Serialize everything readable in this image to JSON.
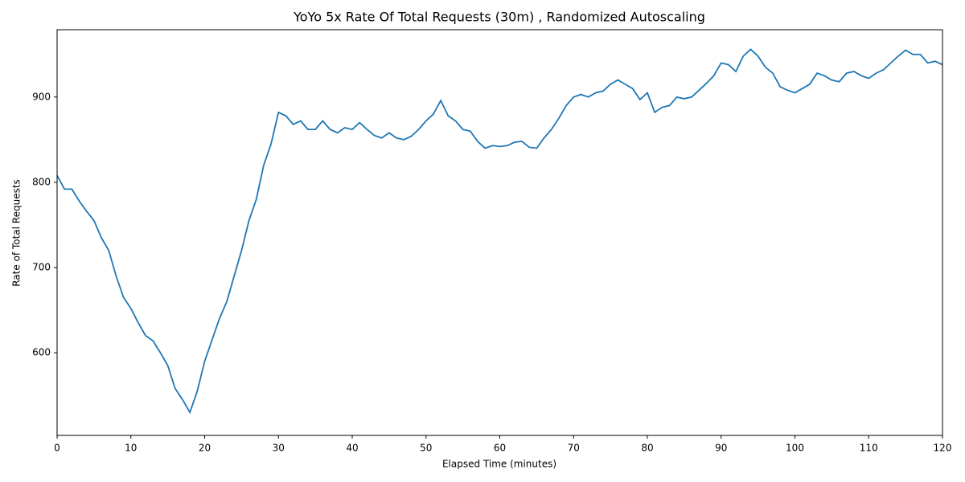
{
  "chart_data": {
    "type": "line",
    "title": "YoYo 5x Rate Of Total Requests (30m) , Randomized Autoscaling",
    "x_label": "Elapsed Time (minutes)",
    "y_label": "Rate of Total Requests",
    "x": [
      0,
      1,
      2,
      3,
      4,
      5,
      6,
      7,
      8,
      9,
      10,
      11,
      12,
      13,
      14,
      15,
      16,
      17,
      18,
      19,
      20,
      21,
      22,
      23,
      24,
      25,
      26,
      27,
      28,
      29,
      30,
      31,
      32,
      33,
      34,
      35,
      36,
      37,
      38,
      39,
      40,
      41,
      42,
      43,
      44,
      45,
      46,
      47,
      48,
      49,
      50,
      51,
      52,
      53,
      54,
      55,
      56,
      57,
      58,
      59,
      60,
      61,
      62,
      63,
      64,
      65,
      66,
      67,
      68,
      69,
      70,
      71,
      72,
      73,
      74,
      75,
      76,
      77,
      78,
      79,
      80,
      81,
      82,
      83,
      84,
      85,
      86,
      87,
      88,
      89,
      90,
      91,
      92,
      93,
      94,
      95,
      96,
      97,
      98,
      99,
      100,
      101,
      102,
      103,
      104,
      105,
      106,
      107,
      108,
      109,
      110,
      111,
      112,
      113,
      114,
      115,
      116,
      117,
      118,
      119,
      120
    ],
    "series": [
      {
        "name": "Rate of Total Requests",
        "color": "#1f77b4",
        "values": [
          808,
          792,
          792,
          778,
          766,
          755,
          735,
          720,
          690,
          665,
          652,
          635,
          620,
          614,
          600,
          585,
          558,
          545,
          530,
          555,
          590,
          615,
          640,
          660,
          690,
          720,
          755,
          780,
          820,
          845,
          882,
          878,
          868,
          872,
          862,
          862,
          872,
          862,
          858,
          864,
          862,
          870,
          862,
          855,
          852,
          858,
          852,
          850,
          854,
          862,
          872,
          880,
          896,
          878,
          872,
          862,
          860,
          848,
          840,
          843,
          842,
          843,
          847,
          848,
          841,
          840,
          852,
          862,
          875,
          890,
          900,
          903,
          900,
          905,
          907,
          915,
          920,
          915,
          910,
          897,
          905,
          882,
          888,
          890,
          900,
          898,
          900,
          908,
          916,
          925,
          940,
          938,
          930,
          948,
          956,
          948,
          935,
          928,
          912,
          908,
          905,
          910,
          915,
          928,
          925,
          920,
          918,
          928,
          930,
          925,
          922,
          928,
          932,
          940,
          948,
          955,
          950,
          950,
          940,
          942,
          938
        ]
      }
    ],
    "xlim": [
      0,
      120
    ],
    "ylim": [
      503,
      979
    ],
    "xticks": [
      0,
      10,
      20,
      30,
      40,
      50,
      60,
      70,
      80,
      90,
      100,
      110,
      120
    ],
    "yticks": [
      600,
      700,
      800,
      900
    ],
    "grid": false
  }
}
